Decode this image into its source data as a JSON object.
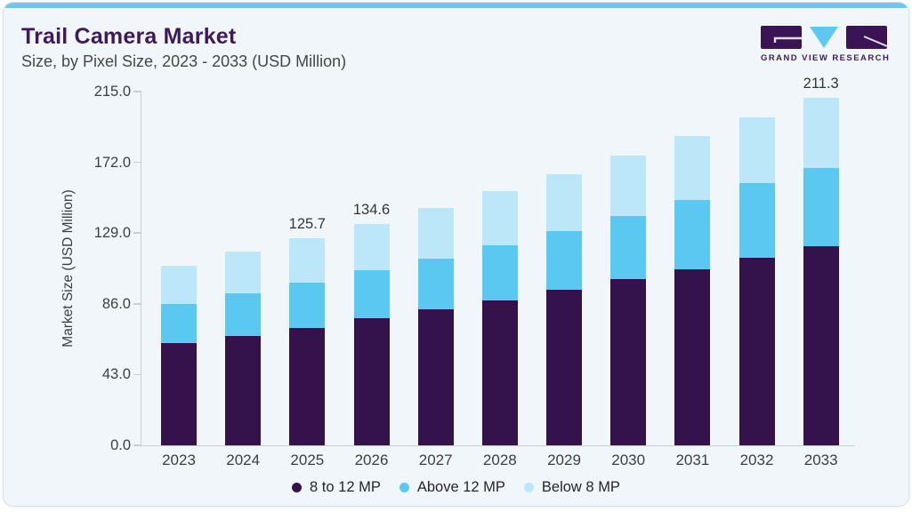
{
  "header": {
    "title": "Trail Camera Market",
    "subtitle": "Size, by Pixel Size, 2023 - 2033 (USD Million)"
  },
  "logo": {
    "text": "GRAND VIEW RESEARCH",
    "purple": "#3a1454",
    "blue": "#5ec8f0"
  },
  "theme": {
    "card_background": "#f1f6fa",
    "top_strip": "#70c7ee",
    "axis_color": "#c7ced4",
    "title_color": "#3c1a5c"
  },
  "chart_data": {
    "type": "bar",
    "stacked": true,
    "title": "Trail Camera Market Size, by Pixel Size, 2023 - 2033 (USD Million)",
    "categories": [
      "2023",
      "2024",
      "2025",
      "2026",
      "2027",
      "2028",
      "2029",
      "2030",
      "2031",
      "2032",
      "2033"
    ],
    "series": [
      {
        "name": "8 to 12 MP",
        "color": "#34124b",
        "values": [
          62.3,
          66.7,
          71.3,
          77.0,
          82.5,
          88.1,
          94.3,
          101.0,
          107.2,
          114.0,
          121.2
        ]
      },
      {
        "name": "Above 12 MP",
        "color": "#5bc8f2",
        "values": [
          23.5,
          25.6,
          27.6,
          29.3,
          31.0,
          33.7,
          35.8,
          38.2,
          41.7,
          45.1,
          47.1
        ]
      },
      {
        "name": "Below 8 MP",
        "color": "#bce7f8",
        "values": [
          23.1,
          25.3,
          26.8,
          28.3,
          30.9,
          32.8,
          34.9,
          36.8,
          38.9,
          40.4,
          43.0
        ]
      }
    ],
    "totals": [
      108.9,
      117.6,
      125.7,
      134.6,
      144.4,
      154.6,
      165.0,
      176.0,
      187.8,
      199.5,
      211.3
    ],
    "bar_labels": [
      "",
      "",
      "125.7",
      "134.6",
      "",
      "",
      "",
      "",
      "",
      "",
      "211.3"
    ],
    "xlabel": "",
    "ylabel": "Market Size (USD Million)",
    "yticks": [
      "0.0",
      "43.0",
      "86.0",
      "129.0",
      "172.0",
      "215.0"
    ],
    "ylim": [
      0,
      215
    ],
    "grid": false,
    "legend_position": "bottom"
  }
}
